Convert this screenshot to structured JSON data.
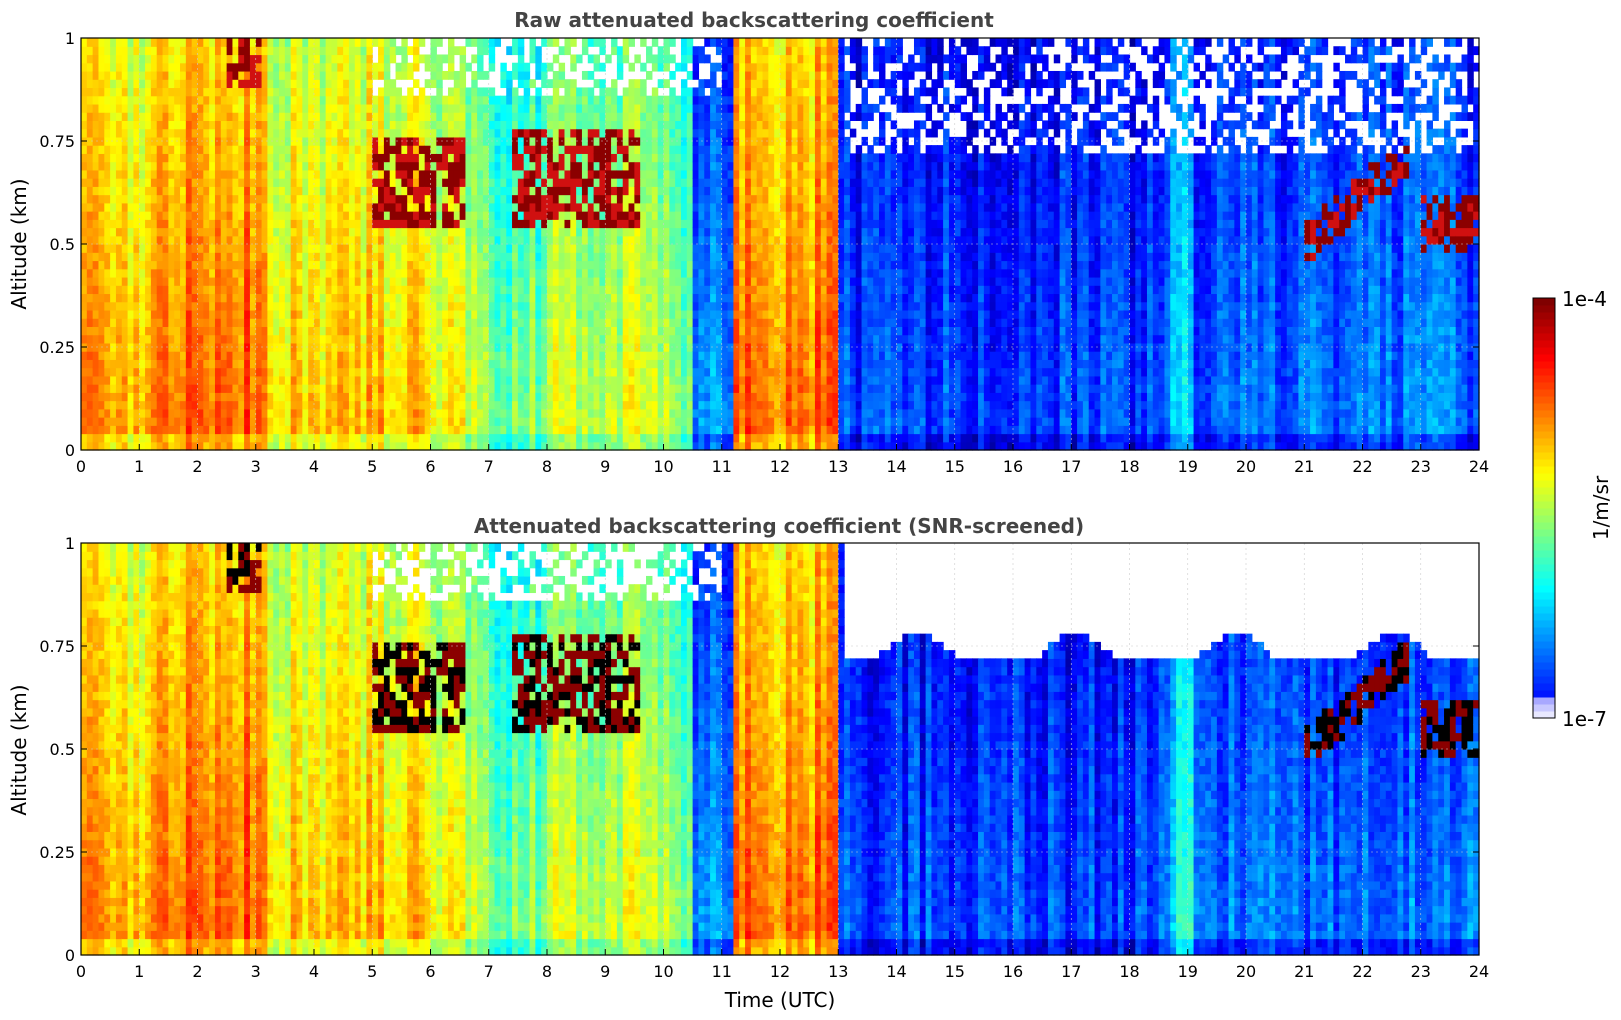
{
  "chart_data": [
    {
      "type": "heatmap",
      "title": "Raw attenuated backscattering coefficient",
      "xlabel": "",
      "ylabel": "Altitude (km)",
      "xlim": [
        0,
        24
      ],
      "ylim": [
        0,
        1
      ],
      "xticks": [
        "0",
        "1",
        "2",
        "3",
        "4",
        "5",
        "6",
        "7",
        "8",
        "9",
        "10",
        "11",
        "12",
        "13",
        "14",
        "15",
        "16",
        "17",
        "18",
        "19",
        "20",
        "21",
        "22",
        "23",
        "24"
      ],
      "yticks": [
        "0",
        "0.25",
        "0.5",
        "0.75",
        "1"
      ],
      "grid": true,
      "screened": false,
      "clouds": [
        {
          "x": [
            5.0,
            6.6
          ],
          "y": [
            0.55,
            0.75
          ],
          "kind": "layer"
        },
        {
          "x": [
            7.4,
            9.6
          ],
          "y": [
            0.55,
            0.78
          ],
          "kind": "layer"
        },
        {
          "x": [
            2.5,
            3.1
          ],
          "y": [
            0.88,
            1.0
          ],
          "kind": "layer"
        },
        {
          "x": [
            21.0,
            22.8
          ],
          "y": [
            0.45,
            0.8
          ],
          "kind": "rising"
        },
        {
          "x": [
            23.0,
            24.0
          ],
          "y": [
            0.48,
            0.62
          ],
          "kind": "layer"
        }
      ]
    },
    {
      "type": "heatmap",
      "title": "Attenuated backscattering coefficient (SNR-screened)",
      "xlabel": "Time (UTC)",
      "ylabel": "Altitude (km)",
      "xlim": [
        0,
        24
      ],
      "ylim": [
        0,
        1
      ],
      "xticks": [
        "0",
        "1",
        "2",
        "3",
        "4",
        "5",
        "6",
        "7",
        "8",
        "9",
        "10",
        "11",
        "12",
        "13",
        "14",
        "15",
        "16",
        "17",
        "18",
        "19",
        "20",
        "21",
        "22",
        "23",
        "24"
      ],
      "yticks": [
        "0",
        "0.25",
        "0.5",
        "0.75",
        "1"
      ],
      "grid": true,
      "screened": true,
      "clouds": [
        {
          "x": [
            5.0,
            6.6
          ],
          "y": [
            0.55,
            0.75
          ],
          "kind": "layer"
        },
        {
          "x": [
            7.4,
            9.6
          ],
          "y": [
            0.55,
            0.78
          ],
          "kind": "layer"
        },
        {
          "x": [
            2.5,
            3.1
          ],
          "y": [
            0.88,
            1.0
          ],
          "kind": "layer"
        },
        {
          "x": [
            21.0,
            22.8
          ],
          "y": [
            0.45,
            0.8
          ],
          "kind": "rising"
        },
        {
          "x": [
            23.0,
            24.0
          ],
          "y": [
            0.48,
            0.62
          ],
          "kind": "layer"
        }
      ]
    }
  ],
  "colorbar": {
    "max_label": "1e-4",
    "min_label": "1e-7",
    "unit": "1/m/sr",
    "colormap": "jet",
    "scale": "log",
    "range": [
      1e-07,
      0.0001
    ]
  }
}
